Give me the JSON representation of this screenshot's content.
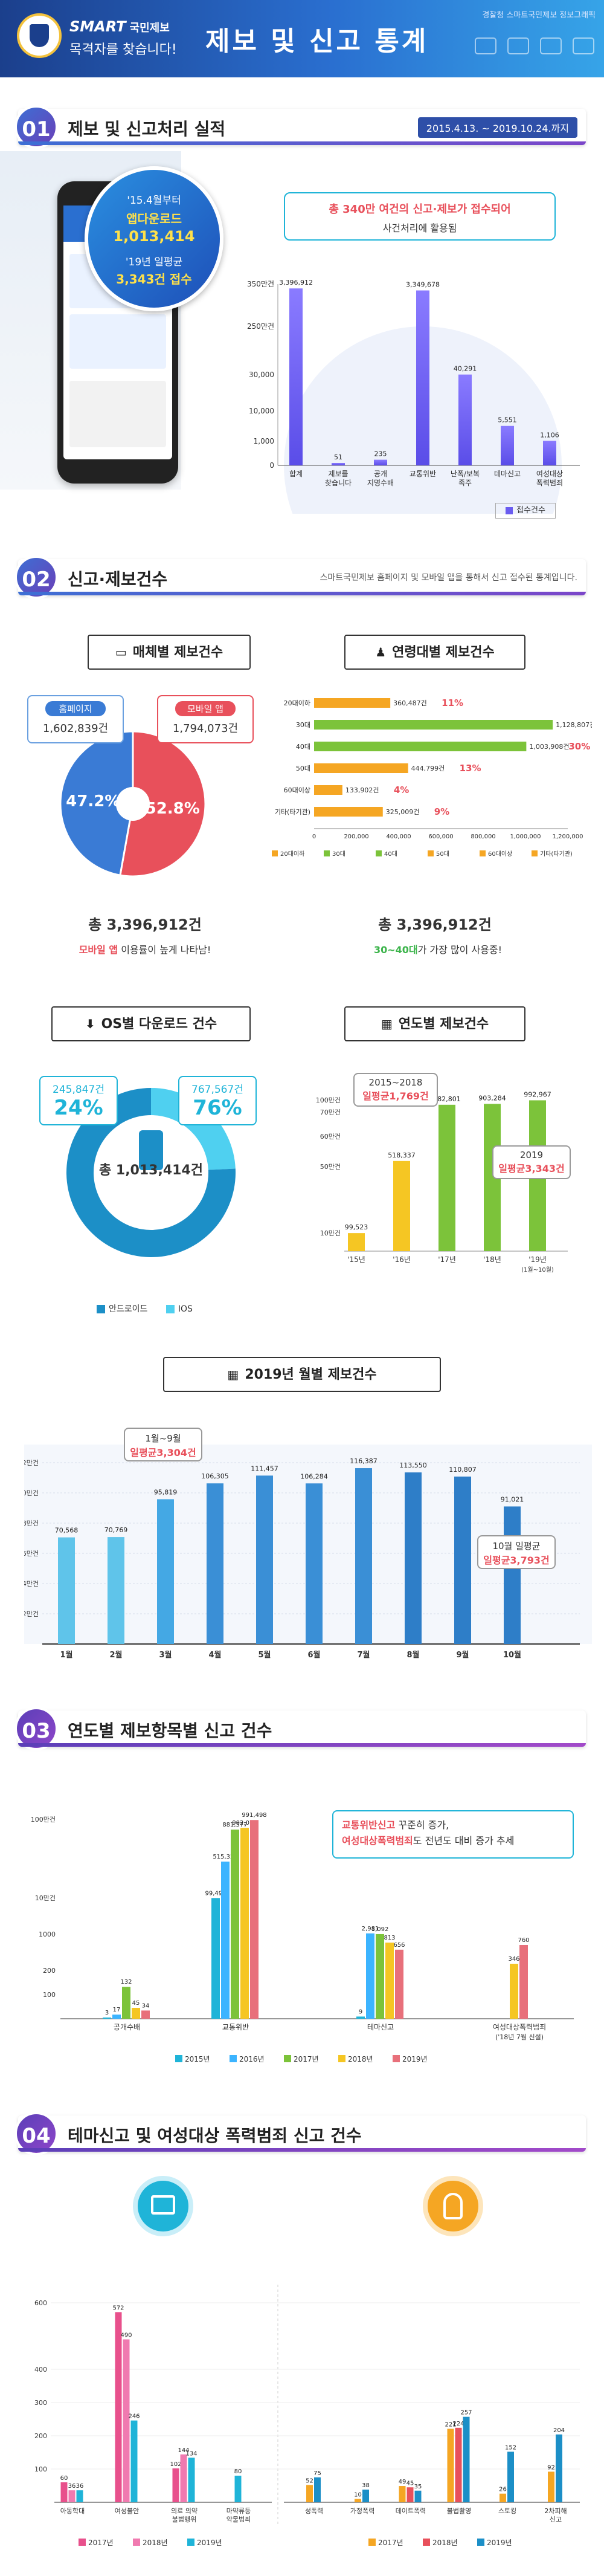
{
  "header": {
    "brand": "SMART",
    "brand_sub": "국민제보",
    "tagline": "목격자를 찾습니다!",
    "title": "제보 및 신고 통계",
    "source": "경찰청 스마트국민제보 정보그래픽"
  },
  "s1": {
    "num": "01",
    "title": "제보 및 신고처리 실적",
    "period": "2015.4.13. ~ 2019.10.24.까지",
    "phone_line1": "'15.4월부터",
    "phone_line2": "앱다운로드",
    "phone_line3": "1,013,414",
    "phone_line4": "'19년 일평균",
    "phone_line5": "3,343건 접수",
    "callout_line1": "총 340만 여건의 신고·제보가 접수되어",
    "callout_line2": "사건처리에 활용됨",
    "legend": "접수건수"
  },
  "s2": {
    "num": "02",
    "title": "신고·제보건수",
    "note": "스마트국민제보 홈페이지 및 모바일 앱을 통해서 신고 접수된 통계입니다.",
    "media_title": "매체별 제보건수",
    "age_title": "연령대별 제보건수",
    "media_total": "총 3,396,912건",
    "media_caption_bold": "모바일 앱",
    "media_caption_rest": " 이용률이 높게 나타남!",
    "age_total": "총 3,396,912건",
    "age_caption_bold": "30~40대",
    "age_caption_rest": "가 가장 많이 사용중!",
    "homepage_label": "홈페이지",
    "homepage_value": "1,602,839건",
    "mobile_label": "모바일 앱",
    "mobile_value": "1,794,073건",
    "homepage_pct": "47.2%",
    "mobile_pct": "52.8%",
    "os_title": "OS별 다운로드 건수",
    "year_title": "연도별 제보건수",
    "os_left_value": "245,847건",
    "os_left_pct": "24%",
    "os_right_value": "767,567건",
    "os_right_pct": "76%",
    "os_total": "총 1,013,414건",
    "os_legend_android": "안드로이드",
    "os_legend_ios": "IOS",
    "year_callout1_a": "2015~2018",
    "year_callout1_b": "일평균1,769건",
    "year_callout2_a": "2019",
    "year_callout2_b": "일평균3,343건",
    "monthly_title": "2019년 월별 제보건수",
    "monthly_callout1_a": "1월~9월",
    "monthly_callout1_b": "일평균3,304건",
    "monthly_callout2_a": "10월 일평균",
    "monthly_callout2_b": "일평균3,793건"
  },
  "s3": {
    "num": "03",
    "title": "연도별 제보항목별 신고 건수",
    "callout_line1_bold": "교통위반신고",
    "callout_line1_rest": " 꾸준히 증가,",
    "callout_line2_bold": "여성대상폭력범죄",
    "callout_line2_rest": "도 전년도 대비 증가 추세"
  },
  "s4": {
    "num": "04",
    "title": "테마신고 및 여성대상 폭력범죄 신고 건수"
  },
  "colors": {
    "blue": "#6a5cf0",
    "orange": "#f5a623",
    "green": "#7cc33a",
    "red": "#e8505b",
    "teal": "#1fb4d8",
    "pink": "#e8508c"
  },
  "chart_data": [
    {
      "type": "bar",
      "id": "overall",
      "categories": [
        "합계",
        "제보를 찾습니다",
        "공개 지명수배",
        "교통위반",
        "난폭/보복 족주",
        "테마신고",
        "여성대상 폭력범죄"
      ],
      "values": [
        3396912,
        51,
        235,
        3349678,
        40291,
        5551,
        1106
      ],
      "ytick_labels": [
        "0",
        "1,000",
        "10,000",
        "30,000",
        "250만건",
        "350만건"
      ],
      "series_name": "접수건수"
    },
    {
      "type": "pie",
      "id": "media",
      "title": "매체별 제보건수",
      "labels": [
        "홈페이지",
        "모바일 앱"
      ],
      "values": [
        1602839,
        1794073
      ],
      "percent": [
        47.2,
        52.8
      ]
    },
    {
      "type": "bar",
      "id": "age",
      "title": "연령대별 제보건수",
      "orientation": "horizontal",
      "categories": [
        "20대이하",
        "30대",
        "40대",
        "50대",
        "60대이상",
        "기타(타기관)"
      ],
      "values": [
        360487,
        1128807,
        1003908,
        444799,
        133902,
        325009
      ],
      "percent_labels": [
        "11%",
        "33%",
        "30%",
        "13%",
        "4%",
        "9%"
      ],
      "xlim": [
        0,
        1200000
      ],
      "xticks": [
        "0",
        "200,000",
        "400,000",
        "600,000",
        "800,000",
        "1,000,000",
        "1,200,000"
      ],
      "legend": [
        "20대이하",
        "30대",
        "40대",
        "50대",
        "60대이상",
        "기타(타기관)"
      ]
    },
    {
      "type": "pie",
      "id": "os",
      "title": "OS별 다운로드 건수",
      "labels": [
        "안드로이드",
        "IOS"
      ],
      "values": [
        767567,
        245847
      ],
      "percent": [
        76,
        24
      ]
    },
    {
      "type": "bar",
      "id": "yearly",
      "title": "연도별 제보건수",
      "categories": [
        "'15년",
        "'16년",
        "'17년",
        "'18년",
        "'19년"
      ],
      "x_note": "(1월~10월)",
      "values": [
        99523,
        518337,
        882801,
        903284,
        992967
      ],
      "ytick_labels": [
        "10만건",
        "50만건",
        "60만건",
        "70만건",
        "100만건"
      ]
    },
    {
      "type": "bar",
      "id": "monthly",
      "title": "2019년 월별 제보건수",
      "categories": [
        "1월",
        "2월",
        "3월",
        "4월",
        "5월",
        "6월",
        "7월",
        "8월",
        "9월",
        "10월"
      ],
      "values": [
        70568,
        70769,
        95819,
        106305,
        111457,
        106284,
        116387,
        113550,
        110807,
        91021
      ],
      "ylim": [
        0,
        120000
      ],
      "ytick_labels": [
        "2만건",
        "4만건",
        "6만건",
        "8만건",
        "10만건",
        "12만건"
      ]
    },
    {
      "type": "bar",
      "id": "by_item",
      "title": "연도별 제보항목별 신고 건수",
      "categories": [
        "공개수배",
        "교통위반",
        "테마신고",
        "여성대상폭력범죄"
      ],
      "category_note": "('18년 7월 신설)",
      "series": [
        {
          "name": "2015년",
          "values": [
            3,
            99499,
            9,
            null
          ]
        },
        {
          "name": "2016년",
          "values": [
            17,
            515323,
            2981,
            null
          ]
        },
        {
          "name": "2017년",
          "values": [
            132,
            881577,
            1092,
            null
          ]
        },
        {
          "name": "2018년",
          "values": [
            45,
            902076,
            813,
            346
          ]
        },
        {
          "name": "2019년",
          "values": [
            34,
            991498,
            656,
            760
          ]
        }
      ],
      "ytick_labels": [
        "100",
        "200",
        "1000",
        "10만건",
        "100만건"
      ]
    },
    {
      "type": "bar",
      "id": "theme",
      "categories": [
        "아동학대",
        "여성불안",
        "의료 의약 불법행위",
        "마약류등 약물범죄"
      ],
      "series": [
        {
          "name": "2017년",
          "values": [
            60,
            572,
            102,
            null
          ]
        },
        {
          "name": "2018년",
          "values": [
            36,
            490,
            144,
            null
          ]
        },
        {
          "name": "2019년",
          "values": [
            36,
            246,
            134,
            80
          ]
        }
      ],
      "ylim": [
        0,
        600
      ],
      "yticks": [
        100,
        200,
        300,
        400,
        600
      ]
    },
    {
      "type": "bar",
      "id": "women_violence",
      "categories": [
        "성폭력",
        "가정폭력",
        "데이트폭력",
        "불법촬영",
        "스토킹",
        "2차피해 신고"
      ],
      "series": [
        {
          "name": "2017년",
          "values": [
            52,
            10,
            49,
            221,
            26,
            92
          ]
        },
        {
          "name": "2018년",
          "values": [
            null,
            null,
            45,
            224,
            null,
            null
          ]
        },
        {
          "name": "2019년",
          "values": [
            75,
            38,
            35,
            257,
            152,
            204
          ]
        }
      ]
    }
  ]
}
